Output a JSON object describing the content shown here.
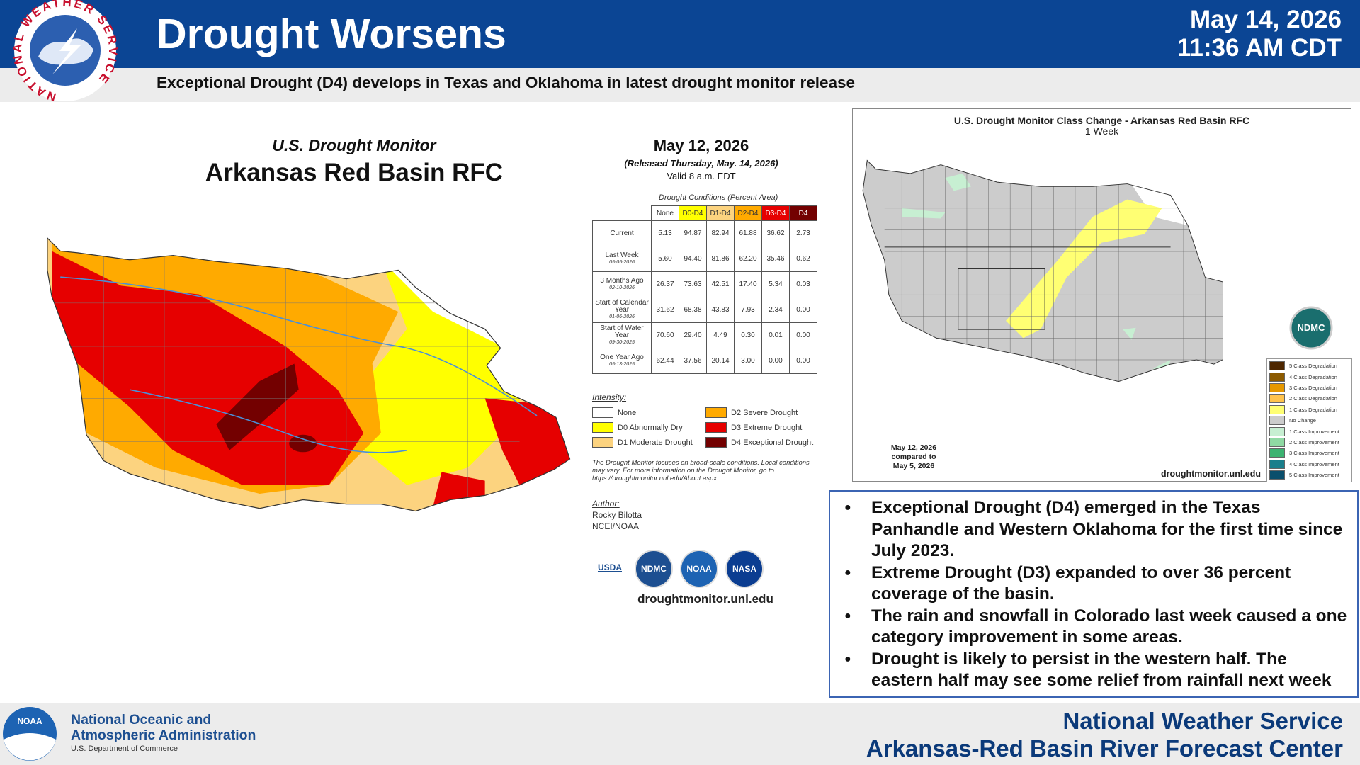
{
  "header": {
    "title": "Drought Worsens",
    "subtitle": "Exceptional Drought (D4) develops in Texas and Oklahoma in latest drought monitor release",
    "date": "May 14, 2026",
    "time": "11:36 AM CDT",
    "logo_text": "NATIONAL WEATHER SERVICE"
  },
  "drought_monitor": {
    "heading": "U.S. Drought Monitor",
    "region": "Arkansas Red Basin RFC",
    "map_date": "May 12, 2026",
    "released": "(Released Thursday, May. 14, 2026)",
    "valid": "Valid 8 a.m. EDT",
    "table": {
      "caption": "Drought Conditions (Percent Area)",
      "columns": [
        "None",
        "D0-D4",
        "D1-D4",
        "D2-D4",
        "D3-D4",
        "D4"
      ],
      "column_colors": [
        "#ffffff",
        "#ffff00",
        "#fcd37f",
        "#ffaa00",
        "#e60000",
        "#730000"
      ],
      "rows": [
        {
          "label": "Current",
          "sublabel": null,
          "values": [
            "5.13",
            "94.87",
            "82.94",
            "61.88",
            "36.62",
            "2.73"
          ]
        },
        {
          "label": "Last Week",
          "sublabel": "05-05-2026",
          "values": [
            "5.60",
            "94.40",
            "81.86",
            "62.20",
            "35.46",
            "0.62"
          ]
        },
        {
          "label": "3 Months Ago",
          "sublabel": "02-10-2026",
          "values": [
            "26.37",
            "73.63",
            "42.51",
            "17.40",
            "5.34",
            "0.03"
          ]
        },
        {
          "label": "Start of Calendar Year",
          "sublabel": "01-06-2026",
          "values": [
            "31.62",
            "68.38",
            "43.83",
            "7.93",
            "2.34",
            "0.00"
          ]
        },
        {
          "label": "Start of Water Year",
          "sublabel": "09-30-2025",
          "values": [
            "70.60",
            "29.40",
            "4.49",
            "0.30",
            "0.01",
            "0.00"
          ]
        },
        {
          "label": "One Year Ago",
          "sublabel": "05-13-2025",
          "values": [
            "62.44",
            "37.56",
            "20.14",
            "3.00",
            "0.00",
            "0.00"
          ]
        }
      ]
    },
    "intensity": {
      "heading": "Intensity:",
      "items": [
        {
          "label": "None",
          "color": "#ffffff"
        },
        {
          "label": "D2 Severe Drought",
          "color": "#ffaa00"
        },
        {
          "label": "D0 Abnormally Dry",
          "color": "#ffff00"
        },
        {
          "label": "D3 Extreme Drought",
          "color": "#e60000"
        },
        {
          "label": "D1 Moderate Drought",
          "color": "#fcd37f"
        },
        {
          "label": "D4 Exceptional Drought",
          "color": "#730000"
        }
      ]
    },
    "note": "The Drought Monitor focuses on broad-scale conditions. Local conditions may vary. For more information on the Drought Monitor, go to https://droughtmonitor.unl.edu/About.aspx",
    "author_heading": "Author:",
    "author": "Rocky Bilotta",
    "author_org": "NCEI/NOAA",
    "logos": [
      "USDA",
      "NDMC",
      "NOAA",
      "NASA"
    ],
    "url": "droughtmonitor.unl.edu"
  },
  "class_change": {
    "title": "U.S. Drought Monitor Class Change - Arkansas Red Basin RFC",
    "subtitle": "1 Week",
    "date": "May 12, 2026",
    "compared": "compared to",
    "prior_date": "May 5, 2026",
    "url": "droughtmonitor.unl.edu",
    "logo": "NDMC",
    "legend": [
      {
        "label": "5 Class Degradation",
        "color": "#4d2600"
      },
      {
        "label": "4 Class Degradation",
        "color": "#8c5a00"
      },
      {
        "label": "3 Class Degradation",
        "color": "#e69800"
      },
      {
        "label": "2 Class Degradation",
        "color": "#ffc34d"
      },
      {
        "label": "1 Class Degradation",
        "color": "#ffff73"
      },
      {
        "label": "No Change",
        "color": "#cccccc"
      },
      {
        "label": "1 Class Improvement",
        "color": "#c7efd2"
      },
      {
        "label": "2 Class Improvement",
        "color": "#8fd9a3"
      },
      {
        "label": "3 Class Improvement",
        "color": "#3cb371"
      },
      {
        "label": "4 Class Improvement",
        "color": "#1a7f8c"
      },
      {
        "label": "5 Class Improvement",
        "color": "#0b4f6c"
      }
    ]
  },
  "bullets": [
    "Exceptional Drought (D4) emerged in the Texas Panhandle and Western Oklahoma for the first time since July 2023.",
    "Extreme Drought (D3) expanded to over 36 percent coverage of the basin.",
    "The rain and snowfall in Colorado last week caused a one category improvement in some areas.",
    "Drought is likely to persist in the western half. The eastern half may see some relief from rainfall next week"
  ],
  "footer": {
    "noaa_logo": "NOAA",
    "noaa_line1": "National Oceanic and",
    "noaa_line2": "Atmospheric Administration",
    "noaa_line3": "U.S. Department of Commerce",
    "office": "National Weather Service",
    "center": "Arkansas-Red Basin River Forecast Center"
  }
}
